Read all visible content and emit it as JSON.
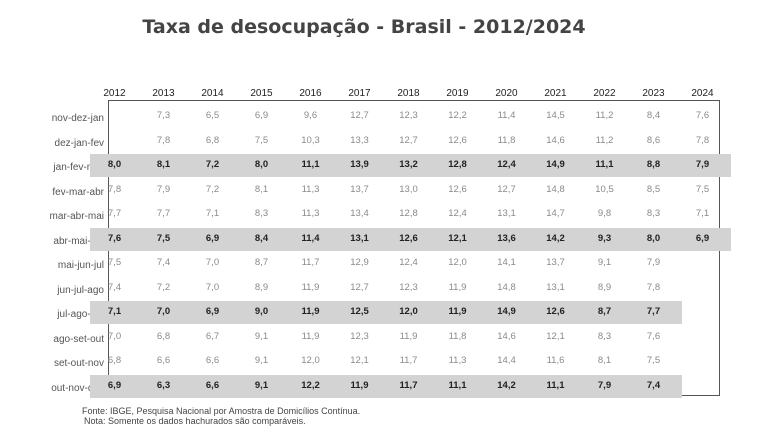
{
  "chart_data": {
    "type": "table",
    "title": "Taxa de desocupação - Brasil - 2012/2024",
    "columns": [
      "2012",
      "2013",
      "2014",
      "2015",
      "2016",
      "2017",
      "2018",
      "2019",
      "2020",
      "2021",
      "2022",
      "2023",
      "2024"
    ],
    "rows": [
      {
        "label": "nov-dez-jan",
        "highlighted": false,
        "values": [
          "",
          "7,3",
          "6,5",
          "6,9",
          "9,6",
          "12,7",
          "12,3",
          "12,2",
          "11,4",
          "14,5",
          "11,2",
          "8,4",
          "7,6"
        ]
      },
      {
        "label": "dez-jan-fev",
        "highlighted": false,
        "values": [
          "",
          "7,8",
          "6,8",
          "7,5",
          "10,3",
          "13,3",
          "12,7",
          "12,6",
          "11,8",
          "14,6",
          "11,2",
          "8,6",
          "7,8"
        ]
      },
      {
        "label": "jan-fev-mar",
        "highlighted": true,
        "values": [
          "8,0",
          "8,1",
          "7,2",
          "8,0",
          "11,1",
          "13,9",
          "13,2",
          "12,8",
          "12,4",
          "14,9",
          "11,1",
          "8,8",
          "7,9"
        ]
      },
      {
        "label": "fev-mar-abr",
        "highlighted": false,
        "values": [
          "7,8",
          "7,9",
          "7,2",
          "8,1",
          "11,3",
          "13,7",
          "13,0",
          "12,6",
          "12,7",
          "14,8",
          "10,5",
          "8,5",
          "7,5"
        ]
      },
      {
        "label": "mar-abr-mai",
        "highlighted": false,
        "values": [
          "7,7",
          "7,7",
          "7,1",
          "8,3",
          "11,3",
          "13,4",
          "12,8",
          "12,4",
          "13,1",
          "14,7",
          "9,8",
          "8,3",
          "7,1"
        ]
      },
      {
        "label": "abr-mai-jun",
        "highlighted": true,
        "values": [
          "7,6",
          "7,5",
          "6,9",
          "8,4",
          "11,4",
          "13,1",
          "12,6",
          "12,1",
          "13,6",
          "14,2",
          "9,3",
          "8,0",
          "6,9"
        ]
      },
      {
        "label": "mai-jun-jul",
        "highlighted": false,
        "values": [
          "7,5",
          "7,4",
          "7,0",
          "8,7",
          "11,7",
          "12,9",
          "12,4",
          "12,0",
          "14,1",
          "13,7",
          "9,1",
          "7,9",
          ""
        ]
      },
      {
        "label": "jun-jul-ago",
        "highlighted": false,
        "values": [
          "7,4",
          "7,2",
          "7,0",
          "8,9",
          "11,9",
          "12,7",
          "12,3",
          "11,9",
          "14,8",
          "13,1",
          "8,9",
          "7,8",
          ""
        ]
      },
      {
        "label": "jul-ago-set",
        "highlighted": true,
        "values": [
          "7,1",
          "7,0",
          "6,9",
          "9,0",
          "11,9",
          "12,5",
          "12,0",
          "11,9",
          "14,9",
          "12,6",
          "8,7",
          "7,7",
          ""
        ]
      },
      {
        "label": "ago-set-out",
        "highlighted": false,
        "values": [
          "7,0",
          "6,8",
          "6,7",
          "9,1",
          "11,9",
          "12,3",
          "11,9",
          "11,8",
          "14,6",
          "12,1",
          "8,3",
          "7,6",
          ""
        ]
      },
      {
        "label": "set-out-nov",
        "highlighted": false,
        "values": [
          "6,8",
          "6,6",
          "6,6",
          "9,1",
          "12,0",
          "12,1",
          "11,7",
          "11,3",
          "14,4",
          "11,6",
          "8,1",
          "7,5",
          ""
        ]
      },
      {
        "label": "out-nov-dez",
        "highlighted": true,
        "values": [
          "6,9",
          "6,3",
          "6,6",
          "9,1",
          "12,2",
          "11,9",
          "11,7",
          "11,1",
          "14,2",
          "11,1",
          "7,9",
          "7,4",
          ""
        ]
      }
    ],
    "highlight_color": "#d3d3d3",
    "footer": [
      "Fonte: IBGE, Pesquisa Nacional por Amostra de Domicílios Contínua.",
      "Nota: Somente os dados hachurados são comparáveis."
    ]
  }
}
